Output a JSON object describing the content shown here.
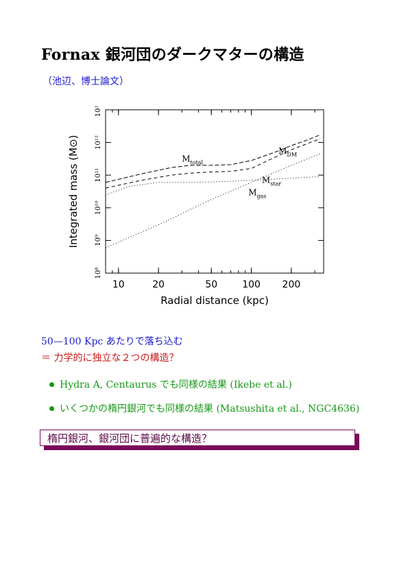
{
  "page": {
    "title": "Fornax 銀河団のダークマターの構造",
    "citation": "（池辺、博士論文）",
    "statement1": "50—100 Kpc あたりで落ち込む",
    "statement2": "＝ 力学的に独立な２つの構造？",
    "bullets": [
      "Hydra A, Centaurus でも同様の結果 (Ikebe et al.)",
      "いくつかの楕円銀河でも同様の結果 (Matsushita et al., NGC4636)"
    ],
    "callout": "楕円銀河、銀河団に普遍的な構造？"
  },
  "colors": {
    "blue": "#1a1acc",
    "red": "#cc1a1a",
    "green": "#159915",
    "callout_border": "#7a0a5a"
  },
  "chart_data": {
    "type": "line",
    "xlabel": "Radial distance (kpc)",
    "ylabel": "Integrated mass (M⊙)",
    "xscale": "log",
    "yscale": "log",
    "xlim": [
      8,
      350
    ],
    "ylim": [
      100000000.0,
      10000000000000.0
    ],
    "xticks": [
      10,
      20,
      50,
      100,
      200
    ],
    "xtick_labels": [
      "10",
      "20",
      "50",
      "100",
      "200"
    ],
    "yticks": [
      100000000.0,
      1000000000.0,
      10000000000.0,
      100000000000.0,
      1000000000000.0,
      10000000000000.0
    ],
    "ytick_labels": [
      "10⁸",
      "10⁹",
      "10¹⁰",
      "10¹¹",
      "10¹²",
      "10¹³"
    ],
    "series": [
      {
        "name": "M_total",
        "label_main": "M",
        "label_sub": "total",
        "x": [
          8,
          15,
          25,
          35,
          50,
          70,
          100,
          150,
          200,
          250,
          330
        ],
        "y": [
          60000000000.0,
          110000000000.0,
          170000000000.0,
          200000000000.0,
          200000000000.0,
          210000000000.0,
          280000000000.0,
          500000000000.0,
          800000000000.0,
          1100000000000.0,
          1700000000000.0
        ]
      },
      {
        "name": "M_DM",
        "label_main": "M",
        "label_sub": "DM",
        "x": [
          8,
          15,
          25,
          35,
          50,
          70,
          100,
          150,
          200,
          250,
          330
        ],
        "y": [
          40000000000.0,
          70000000000.0,
          100000000000.0,
          115000000000.0,
          125000000000.0,
          130000000000.0,
          160000000000.0,
          350000000000.0,
          600000000000.0,
          850000000000.0,
          1300000000000.0
        ]
      },
      {
        "name": "M_star",
        "label_main": "M",
        "label_sub": "star",
        "x": [
          8,
          12,
          20,
          30,
          50,
          70,
          100,
          150,
          200,
          250,
          330
        ],
        "y": [
          25000000000.0,
          45000000000.0,
          60000000000.0,
          60000000000.0,
          62000000000.0,
          65000000000.0,
          70000000000.0,
          75000000000.0,
          80000000000.0,
          85000000000.0,
          90000000000.0
        ]
      },
      {
        "name": "M_gas",
        "label_main": "M",
        "label_sub": "gas",
        "x": [
          8,
          20,
          50,
          100,
          200,
          330
        ],
        "y": [
          600000000.0,
          3000000000.0,
          18000000000.0,
          60000000000.0,
          200000000000.0,
          450000000000.0
        ]
      }
    ]
  }
}
